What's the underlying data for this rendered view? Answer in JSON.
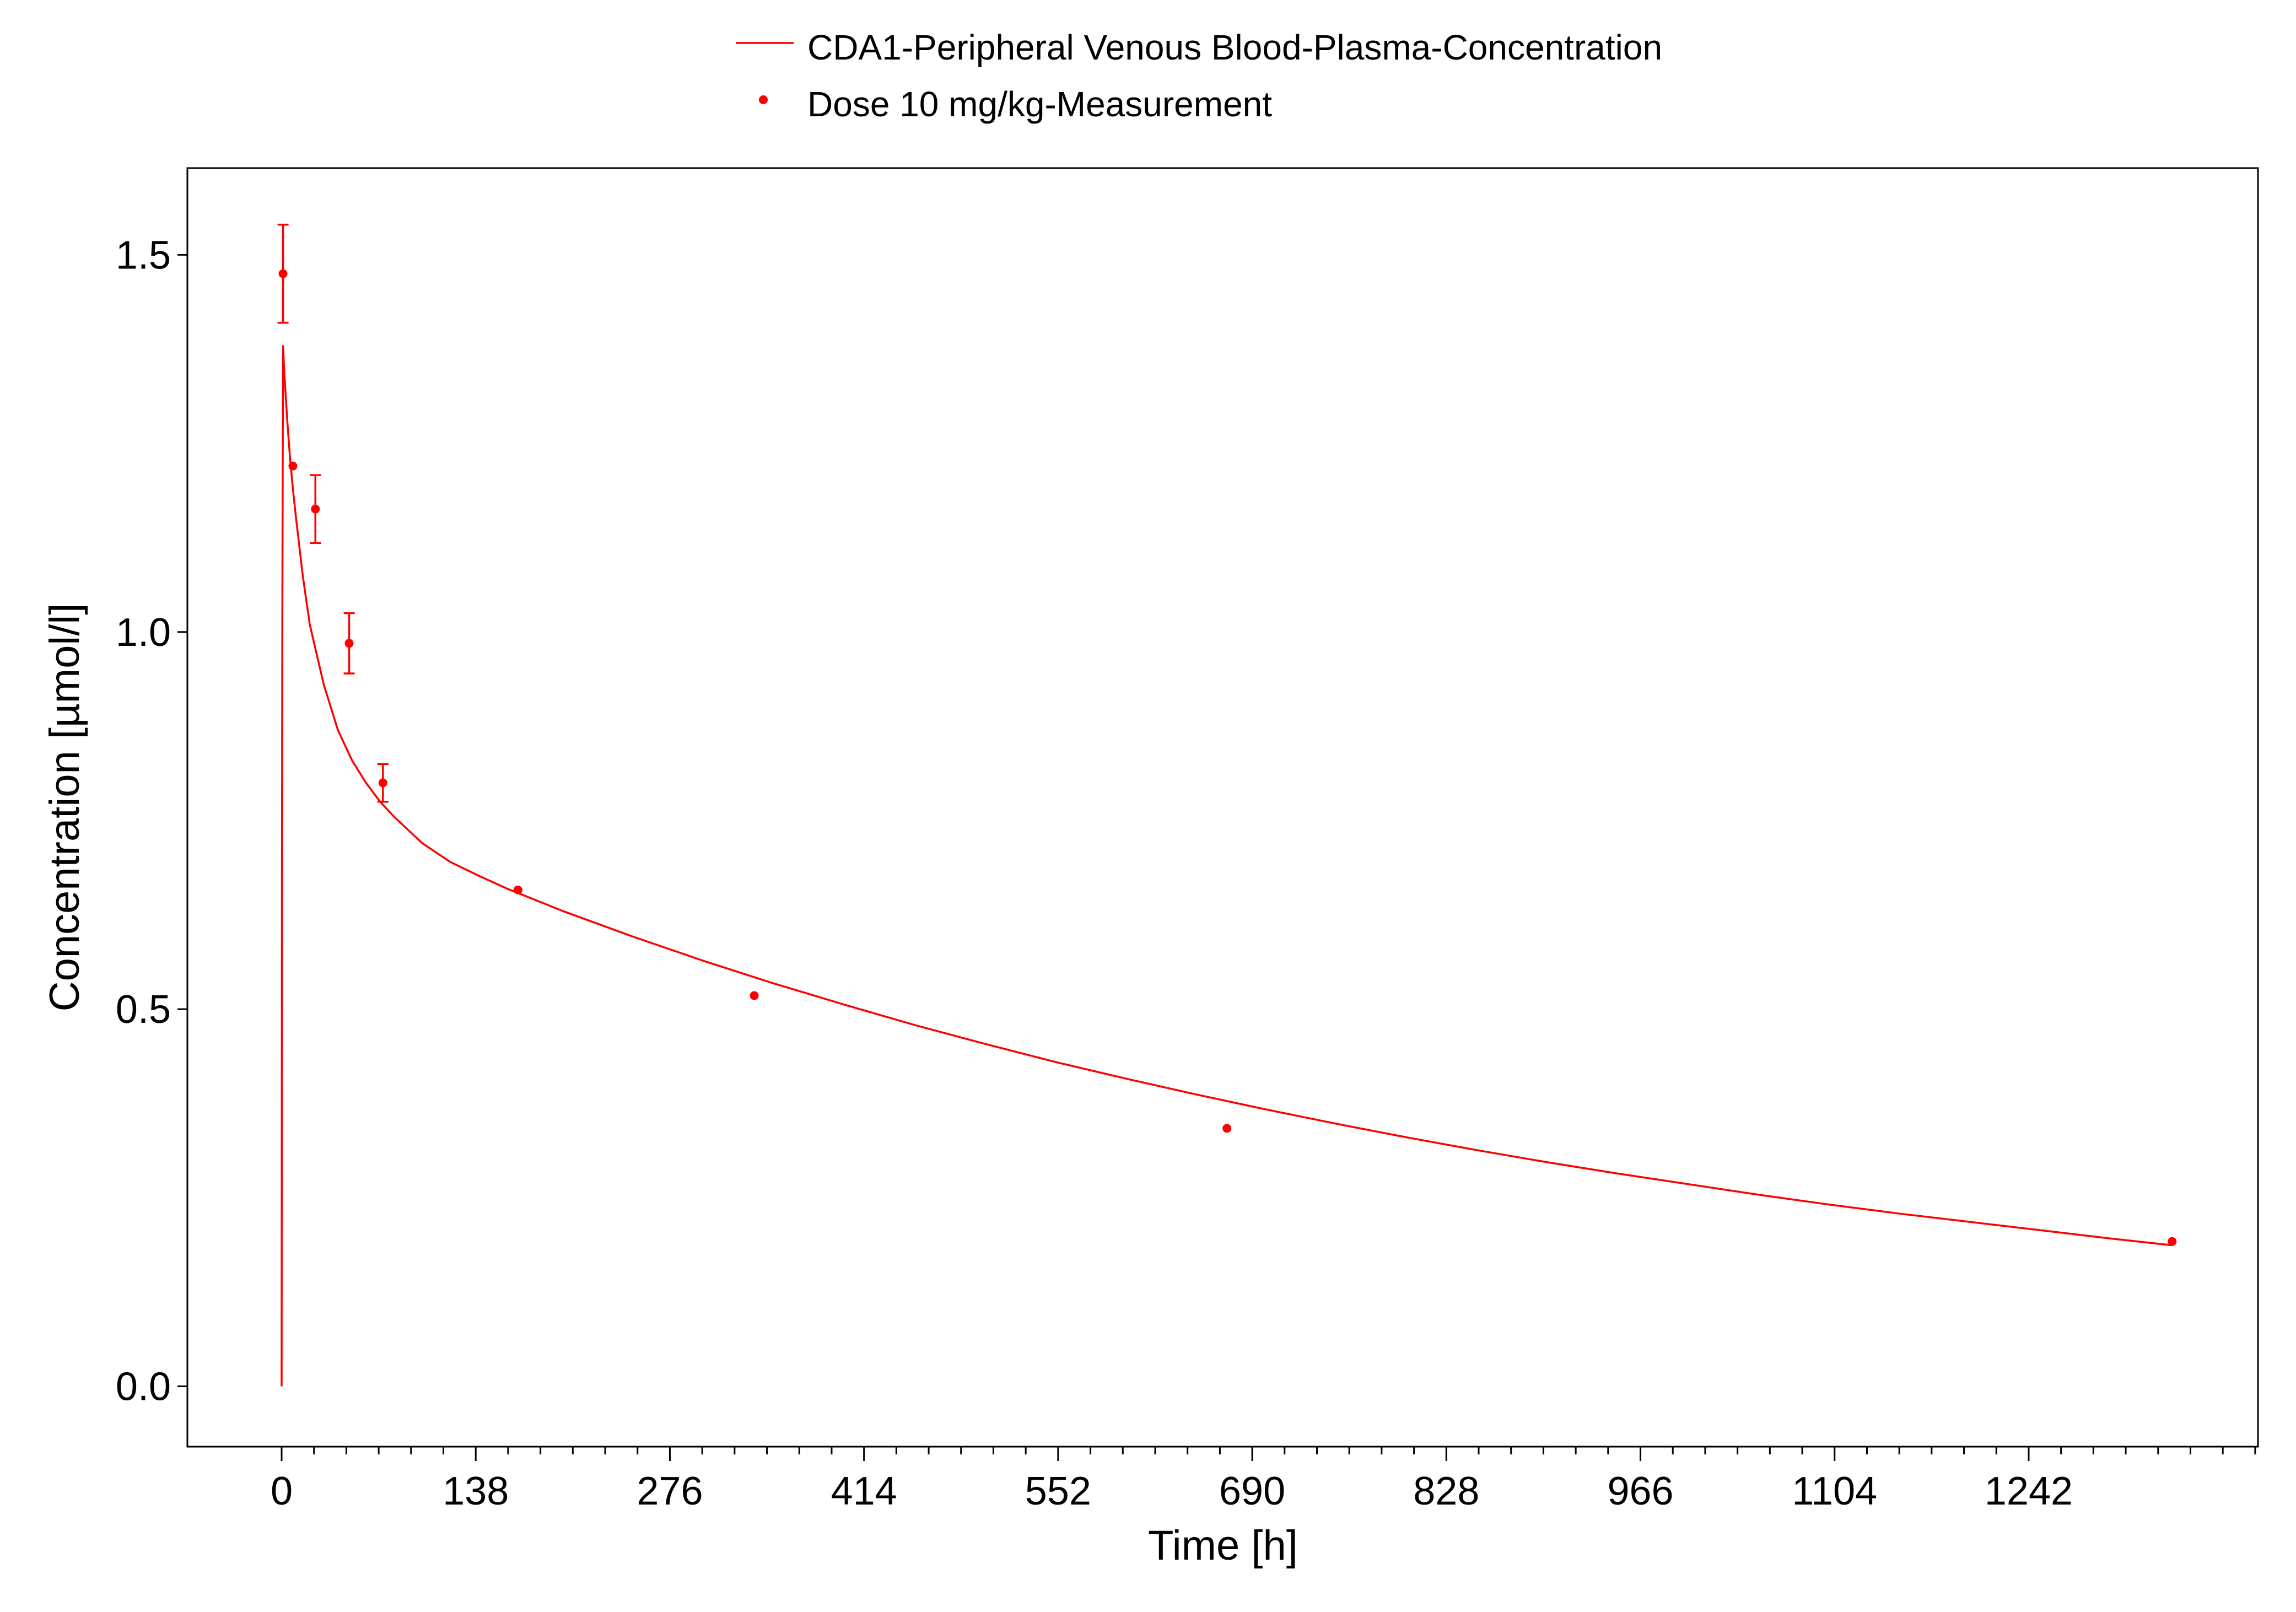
{
  "chart_data": {
    "type": "scatter",
    "title": "",
    "xlabel": "Time [h]",
    "ylabel": "Concentration [µmol/l]",
    "xlim": [
      -67,
      1405
    ],
    "ylim": [
      -0.08,
      1.615
    ],
    "x_ticks": [
      0,
      138,
      276,
      414,
      552,
      690,
      828,
      966,
      1104,
      1242
    ],
    "x_minor_step": 23,
    "y_ticks": [
      0.0,
      0.5,
      1.0,
      1.5
    ],
    "y_tick_labels": [
      "0.0",
      "0.5",
      "1.0",
      "1.5"
    ],
    "grid": false,
    "legend_position": "top-center",
    "color": "#ff0000",
    "series": [
      {
        "name": "CDA1-Peripheral Venous Blood-Plasma-Concentration",
        "kind": "line",
        "x": [
          0,
          0.1,
          0.25,
          0.5,
          1,
          1.5,
          2,
          3,
          4,
          6,
          8,
          10,
          15,
          20,
          30,
          40,
          50,
          60,
          70,
          80,
          100,
          120,
          140,
          160,
          200,
          250,
          300,
          350,
          400,
          450,
          500,
          550,
          600,
          650,
          700,
          750,
          800,
          850,
          900,
          950,
          1000,
          1050,
          1100,
          1150,
          1200,
          1250,
          1300,
          1344
        ],
        "y": [
          0,
          0.3,
          0.7,
          1.02,
          1.38,
          1.36,
          1.34,
          1.31,
          1.28,
          1.23,
          1.19,
          1.155,
          1.075,
          1.01,
          0.93,
          0.87,
          0.83,
          0.8,
          0.775,
          0.755,
          0.72,
          0.695,
          0.677,
          0.66,
          0.63,
          0.596,
          0.564,
          0.534,
          0.506,
          0.479,
          0.454,
          0.43,
          0.408,
          0.387,
          0.367,
          0.348,
          0.33,
          0.313,
          0.297,
          0.282,
          0.268,
          0.254,
          0.241,
          0.229,
          0.218,
          0.207,
          0.196,
          0.187
        ]
      },
      {
        "name": "Dose 10 mg/kg-Measurement",
        "kind": "points",
        "x": [
          1,
          8,
          24,
          48,
          72,
          168,
          336,
          672,
          1344
        ],
        "y": [
          1.475,
          1.22,
          1.163,
          0.985,
          0.8,
          0.658,
          0.518,
          0.342,
          0.192
        ],
        "y_err": [
          0.065,
          null,
          0.045,
          0.04,
          0.025,
          null,
          null,
          null,
          null
        ]
      }
    ]
  }
}
